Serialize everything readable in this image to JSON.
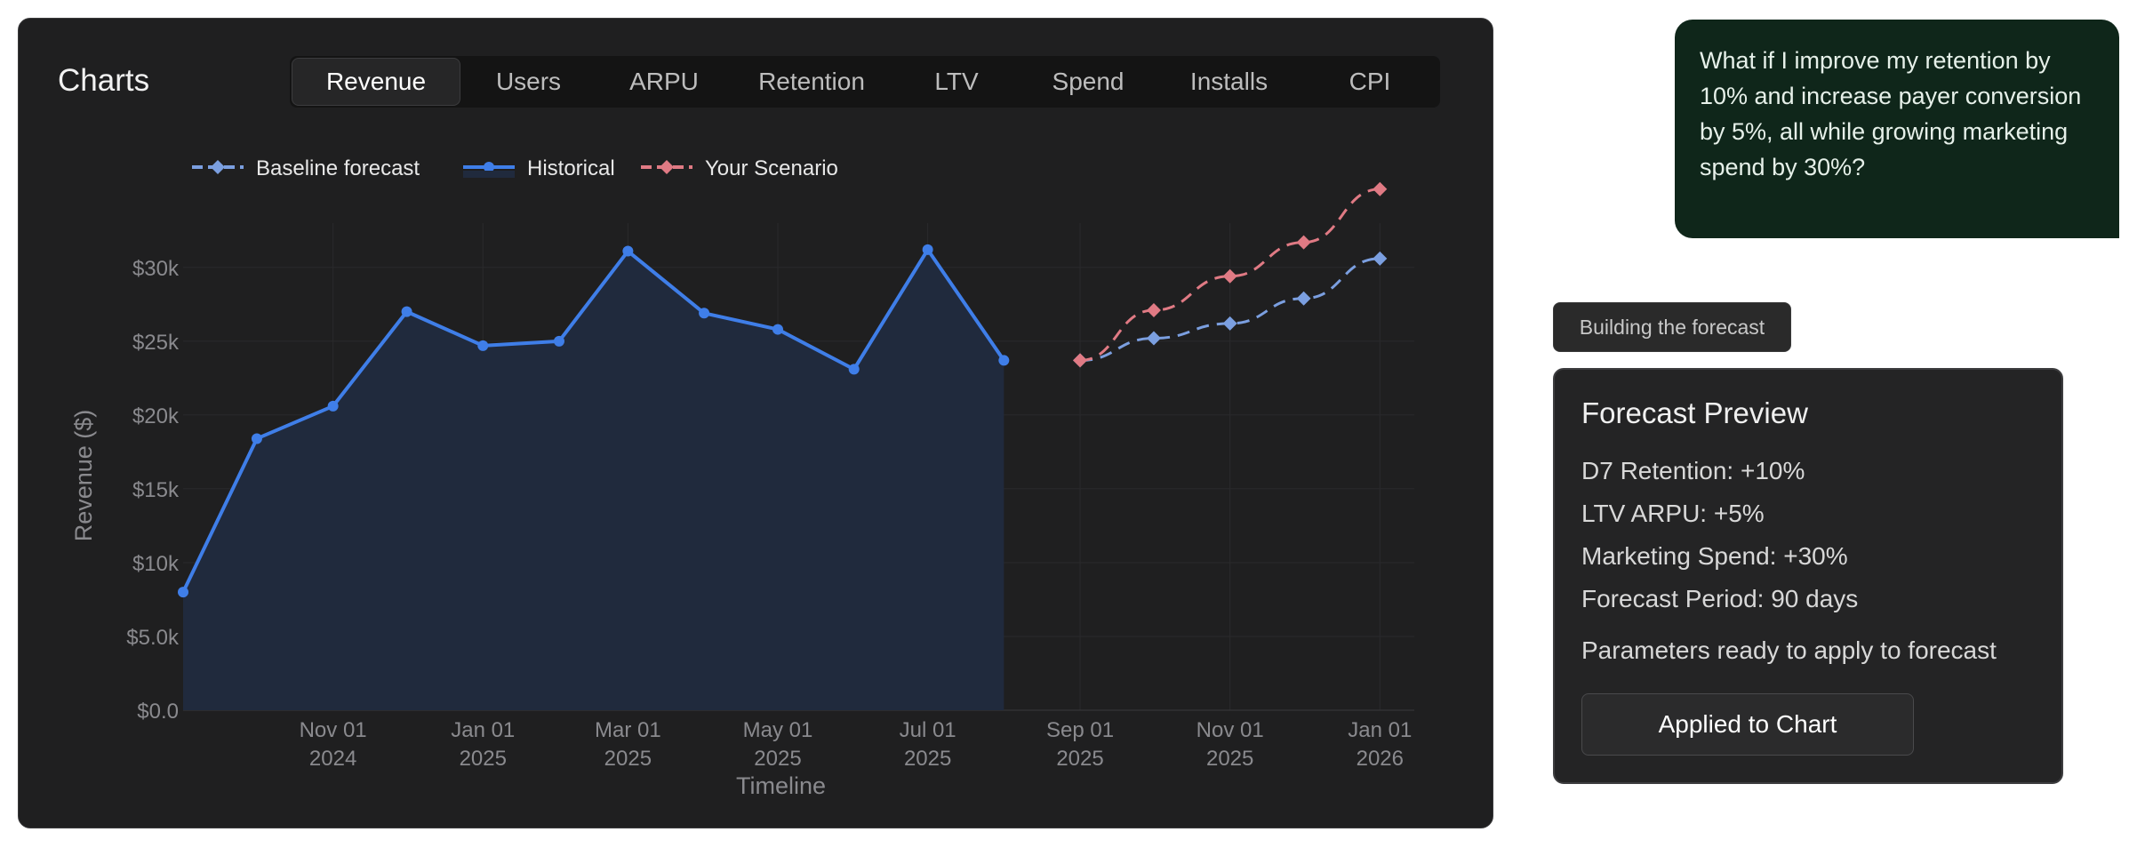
{
  "panel": {
    "title": "Charts"
  },
  "tabs": [
    {
      "label": "Revenue",
      "active": true
    },
    {
      "label": "Users"
    },
    {
      "label": "ARPU"
    },
    {
      "label": "Retention"
    },
    {
      "label": "LTV"
    },
    {
      "label": "Spend"
    },
    {
      "label": "Installs"
    },
    {
      "label": "CPI"
    }
  ],
  "chat": {
    "message": "What if I improve my retention by 10% and increase payer conversion by 5%, all while growing marketing spend by 30%?",
    "status": "Building the forecast"
  },
  "forecast_card": {
    "title": "Forecast Preview",
    "params": [
      "D7 Retention: +10%",
      "LTV ARPU: +5%",
      "Marketing Spend: +30%",
      "Forecast Period: 90 days"
    ],
    "note": "Parameters ready to apply to forecast",
    "button_label": "Applied to Chart"
  },
  "chart_data": {
    "type": "line",
    "xlabel": "Timeline",
    "ylabel": "Revenue ($)",
    "ylim": [
      0,
      33000
    ],
    "y_ticks": [
      0,
      5000,
      10000,
      15000,
      20000,
      25000,
      30000
    ],
    "y_tick_labels": [
      "$0.0",
      "$5.0k",
      "$10k",
      "$15k",
      "$20k",
      "$25k",
      "$30k"
    ],
    "x_range": [
      "2024-09-01",
      "2026-01-15"
    ],
    "x_ticks": [
      {
        "date": "2024-11-01",
        "label": [
          "Nov 01",
          "2024"
        ]
      },
      {
        "date": "2025-01-01",
        "label": [
          "Jan 01",
          "2025"
        ]
      },
      {
        "date": "2025-03-01",
        "label": [
          "Mar 01",
          "2025"
        ]
      },
      {
        "date": "2025-05-01",
        "label": [
          "May 01",
          "2025"
        ]
      },
      {
        "date": "2025-07-01",
        "label": [
          "Jul 01",
          "2025"
        ]
      },
      {
        "date": "2025-09-01",
        "label": [
          "Sep 01",
          "2025"
        ]
      },
      {
        "date": "2025-11-01",
        "label": [
          "Nov 01",
          "2025"
        ]
      },
      {
        "date": "2026-01-01",
        "label": [
          "Jan 01",
          "2026"
        ]
      }
    ],
    "legend_position": "top-left",
    "colors": {
      "baseline": "#7b9fe0",
      "historical": "#3f7ee8",
      "scenario": "#e07a84",
      "historical_fill": "#202a3d"
    },
    "series": [
      {
        "name": "Baseline forecast",
        "style": "dashed",
        "marker": "diamond",
        "points": [
          [
            "2025-09-01",
            23700
          ],
          [
            "2025-10-01",
            25200
          ],
          [
            "2025-11-01",
            26200
          ],
          [
            "2025-12-01",
            27900
          ],
          [
            "2026-01-01",
            30600
          ]
        ]
      },
      {
        "name": "Historical",
        "style": "solid",
        "marker": "circle",
        "fill": true,
        "points": [
          [
            "2024-09-01",
            8000
          ],
          [
            "2024-10-01",
            18400
          ],
          [
            "2024-11-01",
            20600
          ],
          [
            "2024-12-01",
            27000
          ],
          [
            "2025-01-01",
            24700
          ],
          [
            "2025-02-01",
            25000
          ],
          [
            "2025-03-01",
            31100
          ],
          [
            "2025-04-01",
            26900
          ],
          [
            "2025-05-01",
            25800
          ],
          [
            "2025-06-01",
            23100
          ],
          [
            "2025-07-01",
            31200
          ],
          [
            "2025-08-01",
            23700
          ]
        ]
      },
      {
        "name": "Your Scenario",
        "style": "dashed",
        "marker": "diamond",
        "points": [
          [
            "2025-09-01",
            23700
          ],
          [
            "2025-10-01",
            27100
          ],
          [
            "2025-11-01",
            29400
          ],
          [
            "2025-12-01",
            31700
          ],
          [
            "2026-01-01",
            35300
          ]
        ]
      }
    ]
  }
}
